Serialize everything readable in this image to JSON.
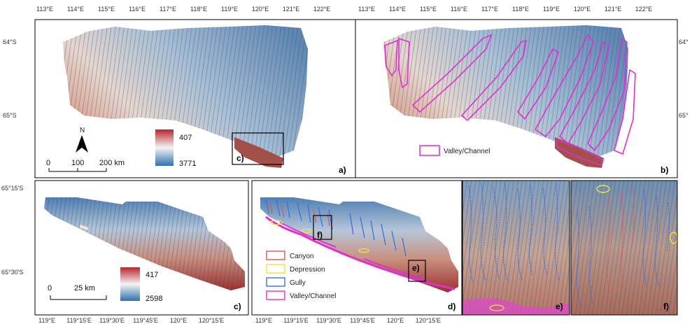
{
  "top_axis": [
    "113°E",
    "114°E",
    "115°E",
    "116°E",
    "117°E",
    "118°E",
    "119°E",
    "120°E",
    "121°E",
    "122°E"
  ],
  "top_axis_b": [
    "113°E",
    "114°E",
    "115°E",
    "116°E",
    "117°E",
    "118°E",
    "119°E",
    "120°E",
    "121°E",
    "122°E"
  ],
  "left_lat_a": [
    "64°S",
    "65°S"
  ],
  "right_lat_b": [
    "64°",
    "65°"
  ],
  "left_lat_c": [
    "65°15'S",
    "65°30'S"
  ],
  "bottom_axis": [
    "119°E",
    "119°15'E",
    "119°30'E",
    "119°45'E",
    "120°E",
    "120°15'E",
    "119°E",
    "119°15'E",
    "119°30'E",
    "119°45'E",
    "120°E",
    "120°15'E"
  ],
  "panel_a": {
    "label": "a)",
    "north": "N",
    "scale": [
      "0",
      "100",
      "200 km"
    ],
    "depth_max": "407",
    "depth_min": "3771",
    "inset_label": "c)"
  },
  "panel_b": {
    "label": "b)",
    "legend": "Valley/Channel"
  },
  "panel_c": {
    "label": "c)",
    "scale": [
      "0",
      "25 km"
    ],
    "depth_max": "417",
    "depth_min": "2598"
  },
  "panel_d": {
    "label": "d)",
    "legend": [
      "Canyon",
      "Depression",
      "Gully",
      "Valley/Channel"
    ],
    "inset_f": "f)",
    "inset_e": "e)"
  },
  "panel_e": {
    "label": "e)"
  },
  "panel_f": {
    "label": "f)"
  },
  "colors": {
    "canyon": "#e8514f",
    "depression": "#f2e43a",
    "gully": "#3a6fe0",
    "valley": "#e02fcf",
    "shallow": "#b8242c",
    "deep": "#2f6fb0"
  }
}
